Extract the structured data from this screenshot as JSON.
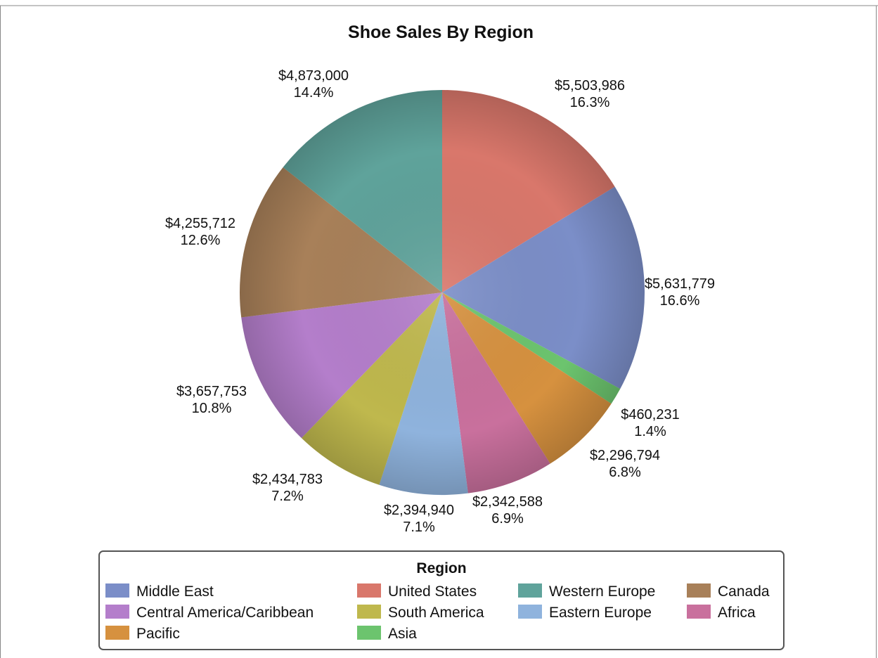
{
  "chart_data": {
    "type": "pie",
    "title": "Shoe Sales By Region",
    "legend_title": "Region",
    "legend_position": "bottom",
    "slices": [
      {
        "label": "United States",
        "value": 5503986,
        "value_text": "$5,503,986",
        "percent_text": "16.3%",
        "color": "#d9776b"
      },
      {
        "label": "Middle East",
        "value": 5631779,
        "value_text": "$5,631,779",
        "percent_text": "16.6%",
        "color": "#7b8ec8"
      },
      {
        "label": "Asia",
        "value": 460231,
        "value_text": "$460,231",
        "percent_text": "1.4%",
        "color": "#6cc46e"
      },
      {
        "label": "Pacific",
        "value": 2296794,
        "value_text": "$2,296,794",
        "percent_text": "6.8%",
        "color": "#d6913f"
      },
      {
        "label": "Africa",
        "value": 2342588,
        "value_text": "$2,342,588",
        "percent_text": "6.9%",
        "color": "#c9709d"
      },
      {
        "label": "Eastern Europe",
        "value": 2394940,
        "value_text": "$2,394,940",
        "percent_text": "7.1%",
        "color": "#8fb3dd"
      },
      {
        "label": "South America",
        "value": 2434783,
        "value_text": "$2,434,783",
        "percent_text": "7.2%",
        "color": "#bfb84d"
      },
      {
        "label": "Central America/Caribbean",
        "value": 3657753,
        "value_text": "$3,657,753",
        "percent_text": "10.8%",
        "color": "#b47ecb"
      },
      {
        "label": "Canada",
        "value": 4255712,
        "value_text": "$4,255,712",
        "percent_text": "12.6%",
        "color": "#a88059"
      },
      {
        "label": "Western Europe",
        "value": 4873000,
        "value_text": "$4,873,000",
        "percent_text": "14.4%",
        "color": "#5fa39b"
      }
    ],
    "legend_order": [
      "Middle East",
      "United States",
      "Western Europe",
      "Canada",
      "Central America/Caribbean",
      "South America",
      "Eastern Europe",
      "Africa",
      "Pacific",
      "Asia"
    ]
  }
}
